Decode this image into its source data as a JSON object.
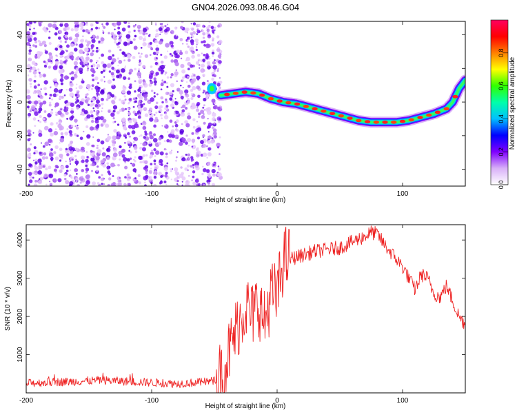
{
  "title": "GN04.2026.093.08.46.G04",
  "chart_data": [
    {
      "type": "heatmap",
      "description_type": "spectrogram",
      "xlabel": "Height of straight line (km)",
      "ylabel": "Frequency (Hz)",
      "xlim": [
        -200,
        150
      ],
      "ylim": [
        -50,
        48
      ],
      "xticks": [
        -200,
        -100,
        0,
        100
      ],
      "yticks": [
        -40,
        -20,
        0,
        20,
        40
      ],
      "colorbar": {
        "label": "Normalized spectral amplitude",
        "range": [
          0,
          1
        ],
        "ticks": [
          "0.0",
          "0.2",
          "0.4",
          "0.6",
          "0.8"
        ],
        "colormap": [
          "#ffffff",
          "#d8b0f8",
          "#7f00ff",
          "#0000ff",
          "#00c0ff",
          "#00ffaa",
          "#30ff00",
          "#ffff00",
          "#ff8000",
          "#ff0000",
          "#ff0060"
        ]
      },
      "noise_region_x": [
        -200,
        -45
      ],
      "signal_track": {
        "x": [
          -45,
          -35,
          -25,
          -15,
          -5,
          5,
          15,
          25,
          35,
          45,
          55,
          65,
          75,
          85,
          95,
          105,
          115,
          125,
          135,
          140,
          145,
          150
        ],
        "y": [
          4,
          5,
          6,
          5,
          2,
          0,
          -1,
          -3,
          -5,
          -7,
          -9,
          -11,
          -12,
          -12,
          -12,
          -11,
          -9,
          -7,
          -4,
          0,
          8,
          13
        ]
      }
    },
    {
      "type": "line",
      "xlabel": "Height of straight line (km)",
      "ylabel": "SNR (10 * v/v)",
      "xlim": [
        -200,
        150
      ],
      "ylim": [
        0,
        4400
      ],
      "xticks": [
        -200,
        -100,
        0,
        100
      ],
      "yticks": [
        1000,
        2000,
        3000,
        4000
      ],
      "line_color": "#ee2222",
      "series": [
        {
          "name": "SNR",
          "x": [
            -200,
            -180,
            -160,
            -140,
            -120,
            -100,
            -80,
            -60,
            -50,
            -45,
            -40,
            -35,
            -30,
            -25,
            -20,
            -15,
            -10,
            -5,
            0,
            5,
            10,
            20,
            30,
            40,
            50,
            60,
            70,
            75,
            80,
            85,
            90,
            95,
            100,
            105,
            110,
            115,
            120,
            125,
            130,
            135,
            140,
            145,
            150
          ],
          "y": [
            250,
            280,
            300,
            330,
            300,
            270,
            240,
            280,
            320,
            500,
            900,
            1400,
            1900,
            2300,
            2000,
            2400,
            1800,
            2600,
            2500,
            3500,
            3500,
            3600,
            3700,
            3750,
            3800,
            3950,
            4100,
            4200,
            4150,
            3900,
            3700,
            3500,
            3300,
            3000,
            2700,
            3100,
            3000,
            2600,
            2500,
            2800,
            2400,
            2000,
            1800
          ]
        }
      ]
    }
  ]
}
